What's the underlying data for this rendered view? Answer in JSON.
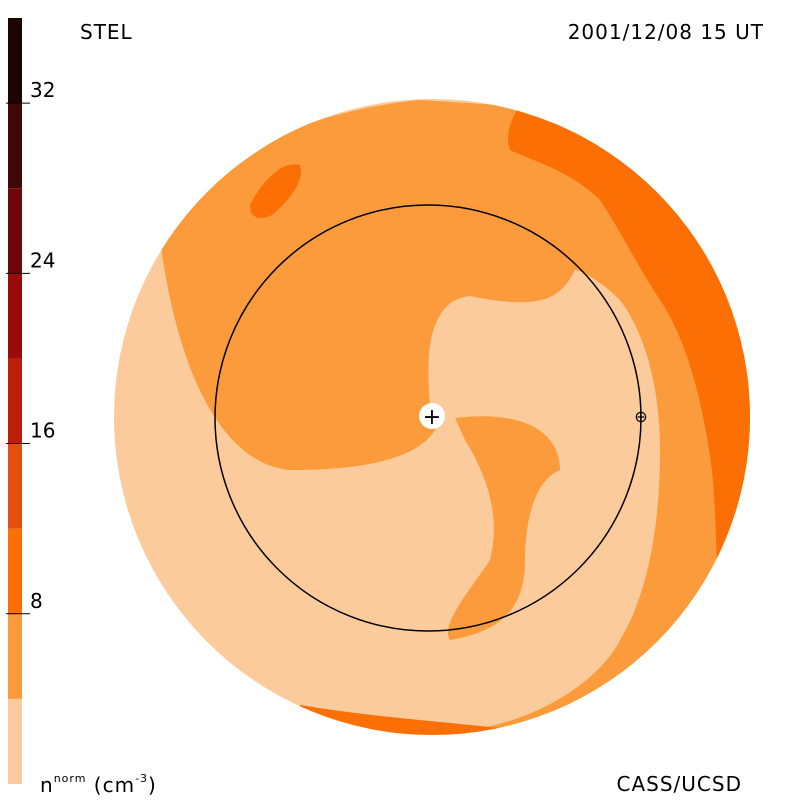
{
  "header": {
    "source": "STEL",
    "timestamp": "2001/12/08 15 UT"
  },
  "footer": {
    "credit": "CASS/UCSD",
    "unit_symbol": "n",
    "unit_superscript": "norm",
    "unit_rest": "(cm",
    "unit_exponent": "-3",
    "unit_close": ")"
  },
  "chart_data": {
    "type": "heatmap",
    "title": "",
    "colorbar": {
      "label": "n^norm (cm^-3)",
      "range": [
        0,
        36
      ],
      "ticks": [
        8,
        16,
        24,
        32
      ],
      "tick_labels": [
        "8",
        "16",
        "24",
        "32"
      ],
      "bands": [
        {
          "from": 0,
          "to": 4,
          "color": "#fccb9b"
        },
        {
          "from": 4,
          "to": 8,
          "color": "#fb9b3b"
        },
        {
          "from": 8,
          "to": 12,
          "color": "#fb6f05"
        },
        {
          "from": 12,
          "to": 16,
          "color": "#e24f0e"
        },
        {
          "from": 16,
          "to": 20,
          "color": "#c01c0c"
        },
        {
          "from": 20,
          "to": 24,
          "color": "#9a0a0a"
        },
        {
          "from": 24,
          "to": 28,
          "color": "#6e0707"
        },
        {
          "from": 28,
          "to": 32,
          "color": "#410808"
        },
        {
          "from": 32,
          "to": 36,
          "color": "#1e0505"
        }
      ]
    },
    "map": {
      "view": "ecliptic plane, Sun at center",
      "markers": [
        {
          "name": "sun",
          "symbol": "+"
        },
        {
          "name": "earth",
          "symbol": "⊕"
        }
      ],
      "reference_orbit": "1 AU circle"
    }
  }
}
